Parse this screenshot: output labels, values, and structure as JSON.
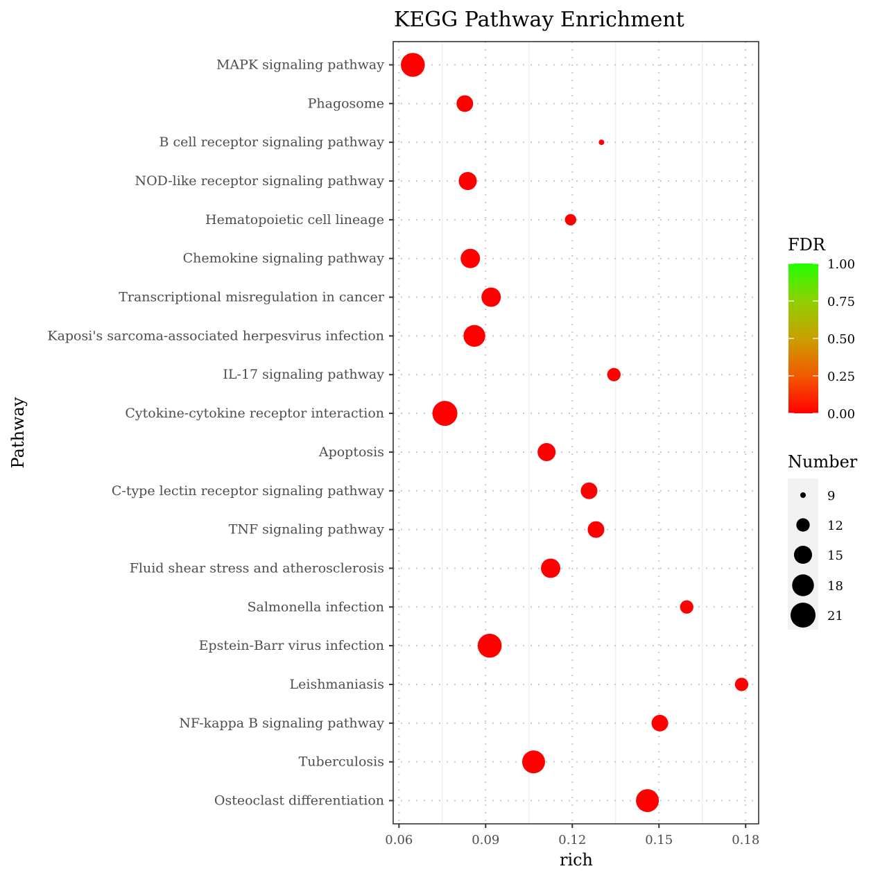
{
  "chart_data": {
    "type": "scatter",
    "title": "KEGG Pathway Enrichment",
    "xlabel": "rich",
    "ylabel": "Pathway",
    "xlim": [
      0.058,
      0.1845
    ],
    "xticks": [
      0.06,
      0.09,
      0.12,
      0.15,
      0.18
    ],
    "xtick_labels": [
      "0.06",
      "0.09",
      "0.12",
      "0.15",
      "0.18"
    ],
    "grid": true,
    "categories": [
      "MAPK signaling pathway",
      "Phagosome",
      "B cell receptor signaling pathway",
      "NOD-like receptor signaling pathway",
      "Hematopoietic cell lineage",
      "Chemokine signaling pathway",
      "Transcriptional misregulation in cancer",
      "Kaposi's sarcoma-associated herpesvirus infection",
      "IL-17 signaling pathway",
      "Cytokine-cytokine receptor interaction",
      "Apoptosis",
      "C-type lectin receptor signaling pathway",
      "TNF signaling pathway",
      "Fluid shear stress and atherosclerosis",
      "Salmonella infection",
      "Epstein-Barr virus infection",
      "Leishmaniasis",
      "NF-kappa B signaling pathway",
      "Tuberculosis",
      "Osteoclast differentiation"
    ],
    "points": [
      {
        "pathway": "MAPK signaling pathway",
        "rich": 0.0648,
        "number": 20,
        "fdr": 0.0
      },
      {
        "pathway": "Phagosome",
        "rich": 0.0828,
        "number": 14,
        "fdr": 0.0
      },
      {
        "pathway": "B cell receptor signaling pathway",
        "rich": 0.1301,
        "number": 9,
        "fdr": 0.0
      },
      {
        "pathway": "NOD-like receptor signaling pathway",
        "rich": 0.0838,
        "number": 15,
        "fdr": 0.0
      },
      {
        "pathway": "Hematopoietic cell lineage",
        "rich": 0.1194,
        "number": 11,
        "fdr": 0.0
      },
      {
        "pathway": "Chemokine signaling pathway",
        "rich": 0.0847,
        "number": 16,
        "fdr": 0.0
      },
      {
        "pathway": "Transcriptional misregulation in cancer",
        "rich": 0.0919,
        "number": 16,
        "fdr": 0.0
      },
      {
        "pathway": "Kaposi's sarcoma-associated herpesvirus infection",
        "rich": 0.0861,
        "number": 18,
        "fdr": 0.0
      },
      {
        "pathway": "IL-17 signaling pathway",
        "rich": 0.1344,
        "number": 12,
        "fdr": 0.0
      },
      {
        "pathway": "Cytokine-cytokine receptor interaction",
        "rich": 0.0759,
        "number": 21,
        "fdr": 0.0
      },
      {
        "pathway": "Apoptosis",
        "rich": 0.1111,
        "number": 15,
        "fdr": 0.0
      },
      {
        "pathway": "C-type lectin receptor signaling pathway",
        "rich": 0.1258,
        "number": 14,
        "fdr": 0.0
      },
      {
        "pathway": "TNF signaling pathway",
        "rich": 0.1282,
        "number": 14,
        "fdr": 0.0
      },
      {
        "pathway": "Fluid shear stress and atherosclerosis",
        "rich": 0.1125,
        "number": 16,
        "fdr": 0.0
      },
      {
        "pathway": "Salmonella infection",
        "rich": 0.1596,
        "number": 12,
        "fdr": 0.0
      },
      {
        "pathway": "Epstein-Barr virus infection",
        "rich": 0.0914,
        "number": 20,
        "fdr": 0.0
      },
      {
        "pathway": "Leishmaniasis",
        "rich": 0.1786,
        "number": 12,
        "fdr": 0.0
      },
      {
        "pathway": "NF-kappa B signaling pathway",
        "rich": 0.1503,
        "number": 14,
        "fdr": 0.0
      },
      {
        "pathway": "Tuberculosis",
        "rich": 0.1066,
        "number": 19,
        "fdr": 0.0
      },
      {
        "pathway": "Osteoclast differentiation",
        "rich": 0.146,
        "number": 19,
        "fdr": 0.0
      }
    ],
    "color_legend": {
      "title": "FDR",
      "range": [
        0.0,
        1.0
      ],
      "low_color": "#ff0000",
      "high_color": "#22ff00",
      "ticks": [
        1.0,
        0.75,
        0.5,
        0.25,
        0.0
      ],
      "tick_labels": [
        "1.00",
        "0.75",
        "0.50",
        "0.25",
        "0.00"
      ],
      "placement": "right"
    },
    "size_legend": {
      "title": "Number",
      "values": [
        9,
        12,
        15,
        18,
        21
      ],
      "labels": [
        "9",
        "12",
        "15",
        "18",
        "21"
      ],
      "placement": "right"
    }
  }
}
